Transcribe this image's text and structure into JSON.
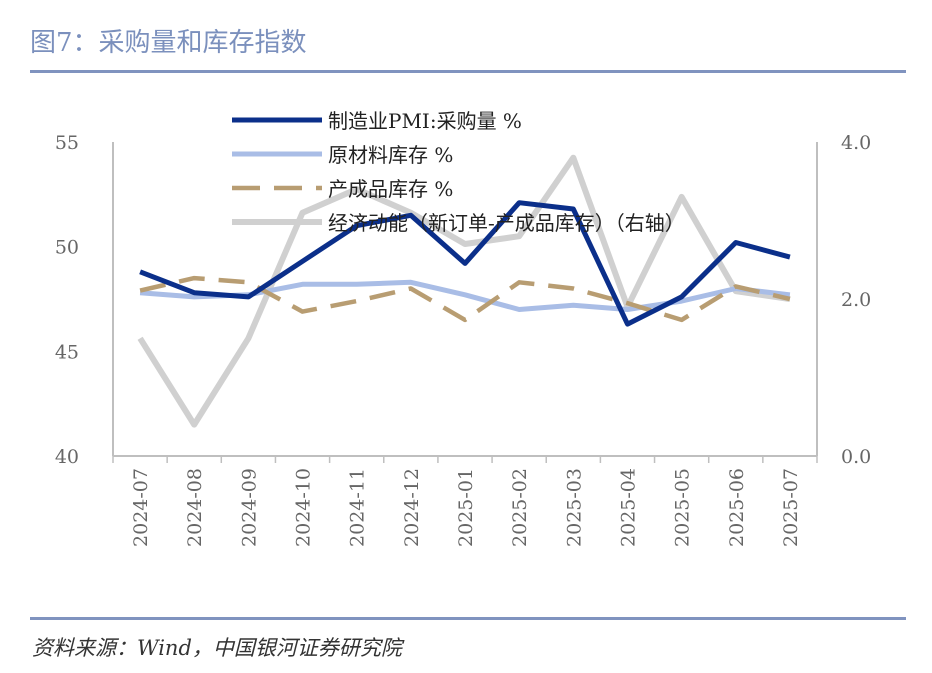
{
  "title": "图7：采购量和库存指数",
  "source": "资料来源：Wind，中国银河证券研究院",
  "colors": {
    "pmi": "#0b2f8a",
    "raw": "#a9bde6",
    "finished": "#b89d72",
    "momentum": "#d0d0d0",
    "axis": "#bfbfbf"
  },
  "chart_data": {
    "type": "line",
    "categories": [
      "2024-07",
      "2024-08",
      "2024-09",
      "2024-10",
      "2024-11",
      "2024-12",
      "2025-01",
      "2025-02",
      "2025-03",
      "2025-04",
      "2025-05",
      "2025-06",
      "2025-07"
    ],
    "ylim_left": [
      40,
      55
    ],
    "yticks_left": [
      "40",
      "45",
      "50",
      "55"
    ],
    "ylim_right": [
      0.0,
      4.0
    ],
    "yticks_right": [
      "0.0",
      "2.0",
      "4.0"
    ],
    "legend_position": "top",
    "series": [
      {
        "name": "制造业PMI:采购量 %",
        "axis": "left",
        "style": "solid",
        "values": [
          48.8,
          47.8,
          47.6,
          49.3,
          51.0,
          51.5,
          49.2,
          52.1,
          51.8,
          46.3,
          47.6,
          50.2,
          49.5
        ]
      },
      {
        "name": "原材料库存 %",
        "axis": "left",
        "style": "solid",
        "values": [
          47.8,
          47.6,
          47.7,
          48.2,
          48.2,
          48.3,
          47.7,
          47.0,
          47.2,
          47.0,
          47.4,
          48.0,
          47.7
        ]
      },
      {
        "name": "产成品库存 %",
        "axis": "left",
        "style": "dashed",
        "values": [
          47.9,
          48.5,
          48.3,
          46.9,
          47.4,
          48.0,
          46.5,
          48.3,
          48.0,
          47.3,
          46.5,
          48.1,
          47.5
        ]
      },
      {
        "name": "经济动能（新订单-产成品库存）（右轴）",
        "axis": "right",
        "style": "solid",
        "values": [
          1.5,
          0.4,
          1.5,
          3.1,
          3.4,
          3.1,
          2.7,
          2.8,
          3.8,
          1.9,
          3.3,
          2.1,
          2.0
        ]
      }
    ]
  }
}
